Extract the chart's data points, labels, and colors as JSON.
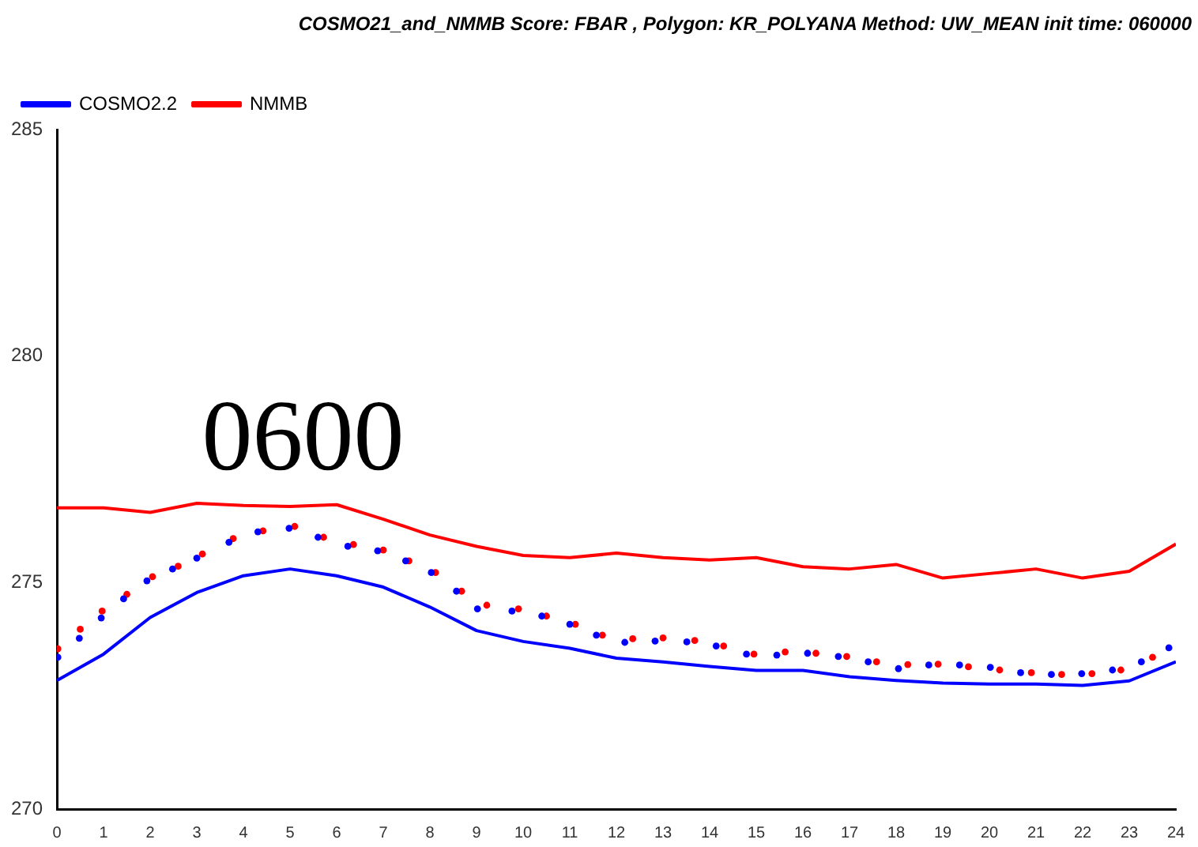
{
  "chart_data": {
    "type": "line",
    "title": "COSMO21_and_NMMB  Score:  FBAR , Polygon:  KR_POLYANA  Method:  UW_MEAN  init time: 060000",
    "annotations": [
      "0600"
    ],
    "xlim": [
      0,
      24
    ],
    "xticks": [
      0,
      1,
      2,
      3,
      4,
      5,
      6,
      7,
      8,
      9,
      10,
      11,
      12,
      13,
      14,
      15,
      16,
      17,
      18,
      19,
      20,
      21,
      22,
      23,
      24
    ],
    "ylim": [
      270,
      285
    ],
    "yticks": [
      270,
      275,
      280,
      285
    ],
    "grid": false,
    "legend": "top left",
    "marker": "none",
    "line_style": "solid",
    "series": [
      {
        "name": "COSMO2.2",
        "color": "#0000ff",
        "x": [
          0,
          1,
          2,
          3,
          4,
          5,
          6,
          7,
          8,
          9,
          10,
          11,
          12,
          13,
          14,
          15,
          16,
          17,
          18,
          19,
          20,
          21,
          22,
          23,
          24
        ],
        "values": [
          272.84,
          273.42,
          274.23,
          274.78,
          275.15,
          275.3,
          275.15,
          274.9,
          274.46,
          273.94,
          273.7,
          273.55,
          273.33,
          273.25,
          273.15,
          273.06,
          273.06,
          272.92,
          272.84,
          272.78,
          272.76,
          272.76,
          272.73,
          272.83,
          273.25
        ]
      },
      {
        "name": "NMMB",
        "color": "#ff0000",
        "x": [
          0,
          1,
          2,
          3,
          4,
          5,
          6,
          7,
          8,
          9,
          10,
          11,
          12,
          13,
          14,
          15,
          16,
          17,
          18,
          19,
          20,
          21,
          22,
          23,
          24
        ],
        "values": [
          276.65,
          276.65,
          276.55,
          276.75,
          276.7,
          276.68,
          276.72,
          276.4,
          276.05,
          275.8,
          275.6,
          275.55,
          275.65,
          275.55,
          275.5,
          275.55,
          275.35,
          275.3,
          275.4,
          275.1,
          275.2,
          275.3,
          275.1,
          275.25,
          275.85
        ]
      },
      {
        "type": "scatter",
        "marker": "circle",
        "color": "#0000ff",
        "x": [
          0.02,
          0.48,
          0.95,
          1.43,
          1.93,
          2.48,
          3.0,
          3.69,
          4.31,
          4.98,
          5.6,
          6.24,
          6.88,
          7.48,
          8.03,
          8.57,
          9.02,
          9.76,
          10.4,
          11.0,
          11.57,
          12.18,
          12.83,
          13.51,
          14.14,
          14.79,
          15.44,
          16.1,
          16.76,
          17.4,
          18.05,
          18.7,
          19.36,
          20.02,
          20.67,
          21.33,
          21.98,
          22.64,
          23.26,
          23.85
        ],
        "values": [
          273.35,
          273.77,
          274.22,
          274.64,
          275.04,
          275.3,
          275.54,
          275.89,
          276.12,
          276.2,
          276.0,
          275.8,
          275.7,
          275.48,
          275.22,
          274.81,
          274.42,
          274.37,
          274.26,
          274.08,
          273.84,
          273.68,
          273.71,
          273.69,
          273.6,
          273.42,
          273.4,
          273.44,
          273.37,
          273.25,
          273.1,
          273.18,
          273.18,
          273.13,
          273.01,
          272.97,
          272.99,
          273.07,
          273.25,
          273.56
        ]
      },
      {
        "type": "scatter",
        "marker": "circle",
        "color": "#ff0000",
        "x": [
          0.02,
          0.5,
          0.97,
          1.5,
          2.05,
          2.6,
          3.12,
          3.78,
          4.42,
          5.1,
          5.72,
          6.36,
          7.0,
          7.55,
          8.12,
          8.68,
          9.22,
          9.9,
          10.5,
          11.12,
          11.7,
          12.35,
          13.0,
          13.68,
          14.3,
          14.95,
          15.62,
          16.28,
          16.94,
          17.58,
          18.25,
          18.9,
          19.55,
          20.22,
          20.9,
          21.55,
          22.2,
          22.82,
          23.5
        ],
        "values": [
          273.54,
          273.97,
          274.37,
          274.74,
          275.13,
          275.36,
          275.63,
          275.97,
          276.14,
          276.24,
          276.0,
          275.84,
          275.72,
          275.48,
          275.22,
          274.81,
          274.5,
          274.42,
          274.26,
          274.08,
          273.84,
          273.76,
          273.78,
          273.72,
          273.6,
          273.42,
          273.47,
          273.44,
          273.37,
          273.25,
          273.19,
          273.2,
          273.14,
          273.07,
          273.01,
          272.97,
          272.99,
          273.07,
          273.35
        ]
      }
    ]
  }
}
